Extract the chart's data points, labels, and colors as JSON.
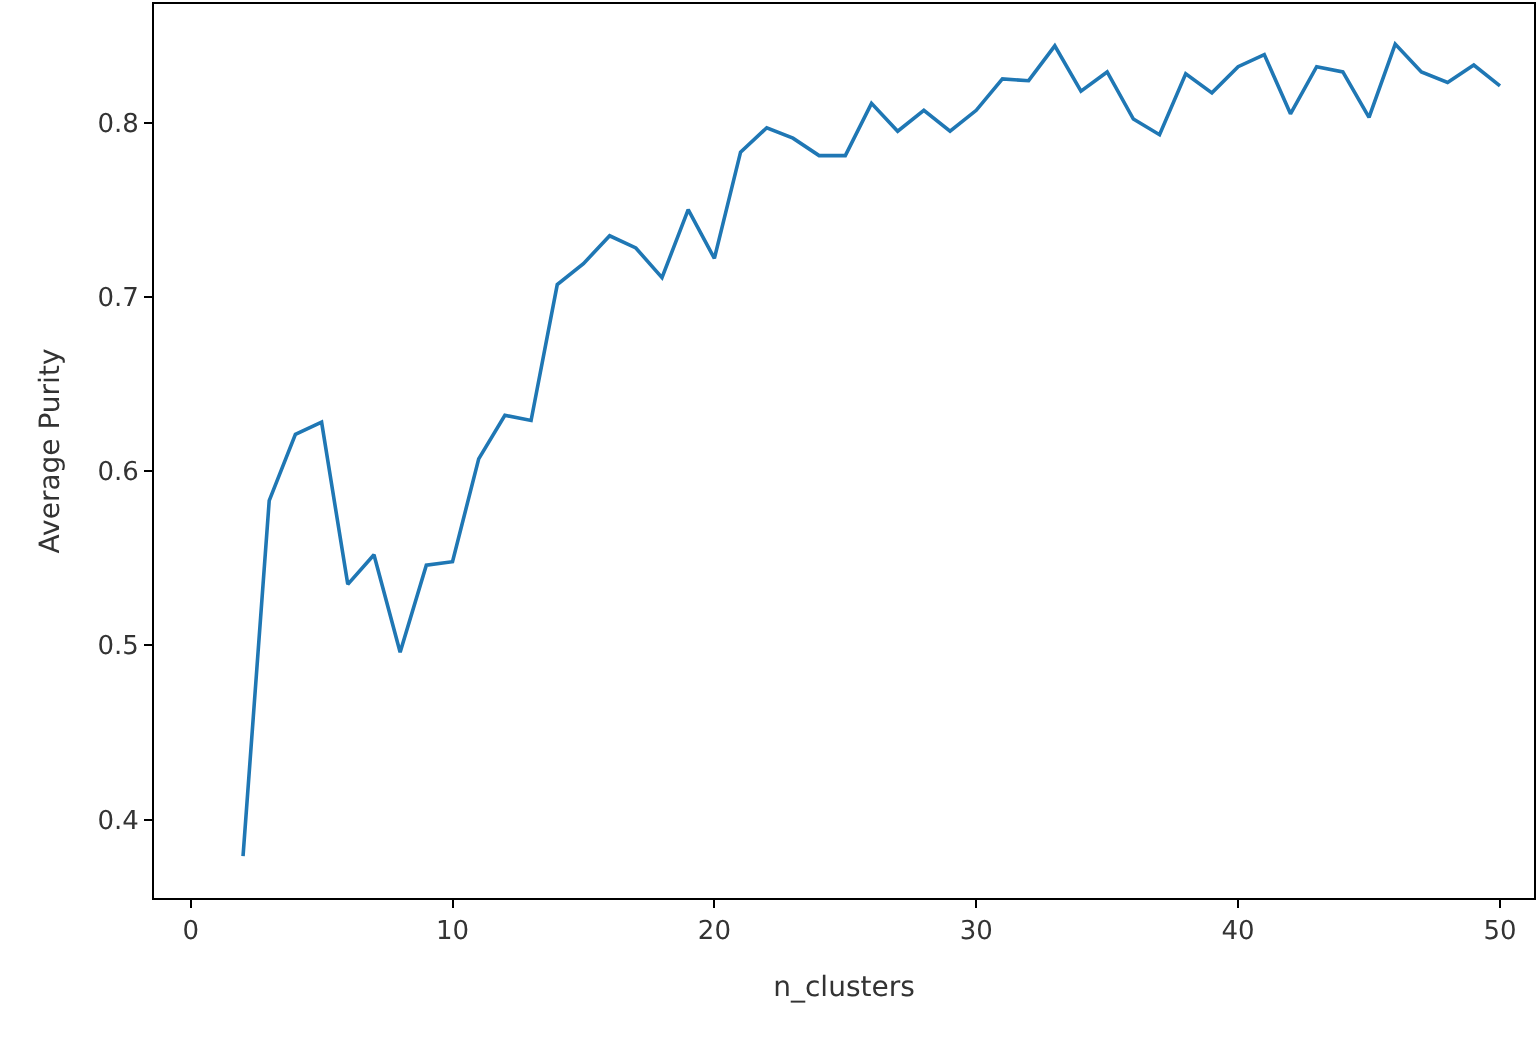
{
  "chart_data": {
    "type": "line",
    "xlabel": "n_clusters",
    "ylabel": "Average Purity",
    "x": [
      2,
      3,
      4,
      5,
      6,
      7,
      8,
      9,
      10,
      11,
      12,
      13,
      14,
      15,
      16,
      17,
      18,
      19,
      20,
      21,
      22,
      23,
      24,
      25,
      26,
      27,
      28,
      29,
      30,
      31,
      32,
      33,
      34,
      35,
      36,
      37,
      38,
      39,
      40,
      41,
      42,
      43,
      44,
      45,
      46,
      47,
      48,
      49,
      50
    ],
    "series": [
      {
        "color": "#1f77b4",
        "values": [
          0.379,
          0.583,
          0.621,
          0.628,
          0.535,
          0.552,
          0.496,
          0.546,
          0.548,
          0.607,
          0.632,
          0.629,
          0.707,
          0.719,
          0.735,
          0.728,
          0.711,
          0.75,
          0.722,
          0.783,
          0.797,
          0.791,
          0.781,
          0.781,
          0.811,
          0.795,
          0.807,
          0.795,
          0.807,
          0.825,
          0.824,
          0.844,
          0.818,
          0.829,
          0.802,
          0.793,
          0.828,
          0.817,
          0.832,
          0.839,
          0.805,
          0.832,
          0.829,
          0.803,
          0.845,
          0.829,
          0.823,
          0.833,
          0.821
        ]
      }
    ],
    "xlim": [
      -1.4,
      51.3
    ],
    "ylim": [
      0.355,
      0.868
    ],
    "xticks": [
      0,
      10,
      20,
      30,
      40,
      50
    ],
    "yticks": [
      0.4,
      0.5,
      0.6,
      0.7,
      0.8
    ],
    "legend": false,
    "marker": "none",
    "line_style": "solid"
  }
}
